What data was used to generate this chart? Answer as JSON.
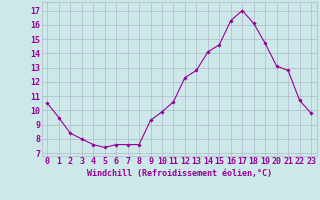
{
  "hours": [
    0,
    1,
    2,
    3,
    4,
    5,
    6,
    7,
    8,
    9,
    10,
    11,
    12,
    13,
    14,
    15,
    16,
    17,
    18,
    19,
    20,
    21,
    22,
    23
  ],
  "values": [
    10.5,
    9.5,
    8.4,
    8.0,
    7.6,
    7.4,
    7.6,
    7.6,
    7.6,
    9.3,
    9.9,
    10.6,
    12.3,
    12.8,
    14.1,
    14.6,
    16.3,
    17.0,
    16.1,
    14.7,
    13.1,
    12.8,
    10.7,
    9.8
  ],
  "line_color": "#990099",
  "marker": "D",
  "markersize": 1.8,
  "linewidth": 0.8,
  "ylabel_ticks": [
    7,
    8,
    9,
    10,
    11,
    12,
    13,
    14,
    15,
    16,
    17
  ],
  "xlim": [
    -0.5,
    23.5
  ],
  "ylim": [
    6.8,
    17.6
  ],
  "xlabel": "Windchill (Refroidissement éolien,°C)",
  "bg_color": "#cce8e8",
  "grid_color": "#b0b8cc",
  "tick_color": "#990099",
  "xlabel_fontsize": 6.0,
  "tick_fontsize": 6.0
}
